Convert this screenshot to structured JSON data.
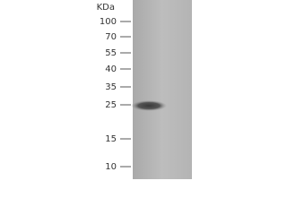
{
  "unit_label": "KDa",
  "markers": [
    "100",
    "70",
    "55",
    "40",
    "35",
    "25",
    "15",
    "10"
  ]
}
